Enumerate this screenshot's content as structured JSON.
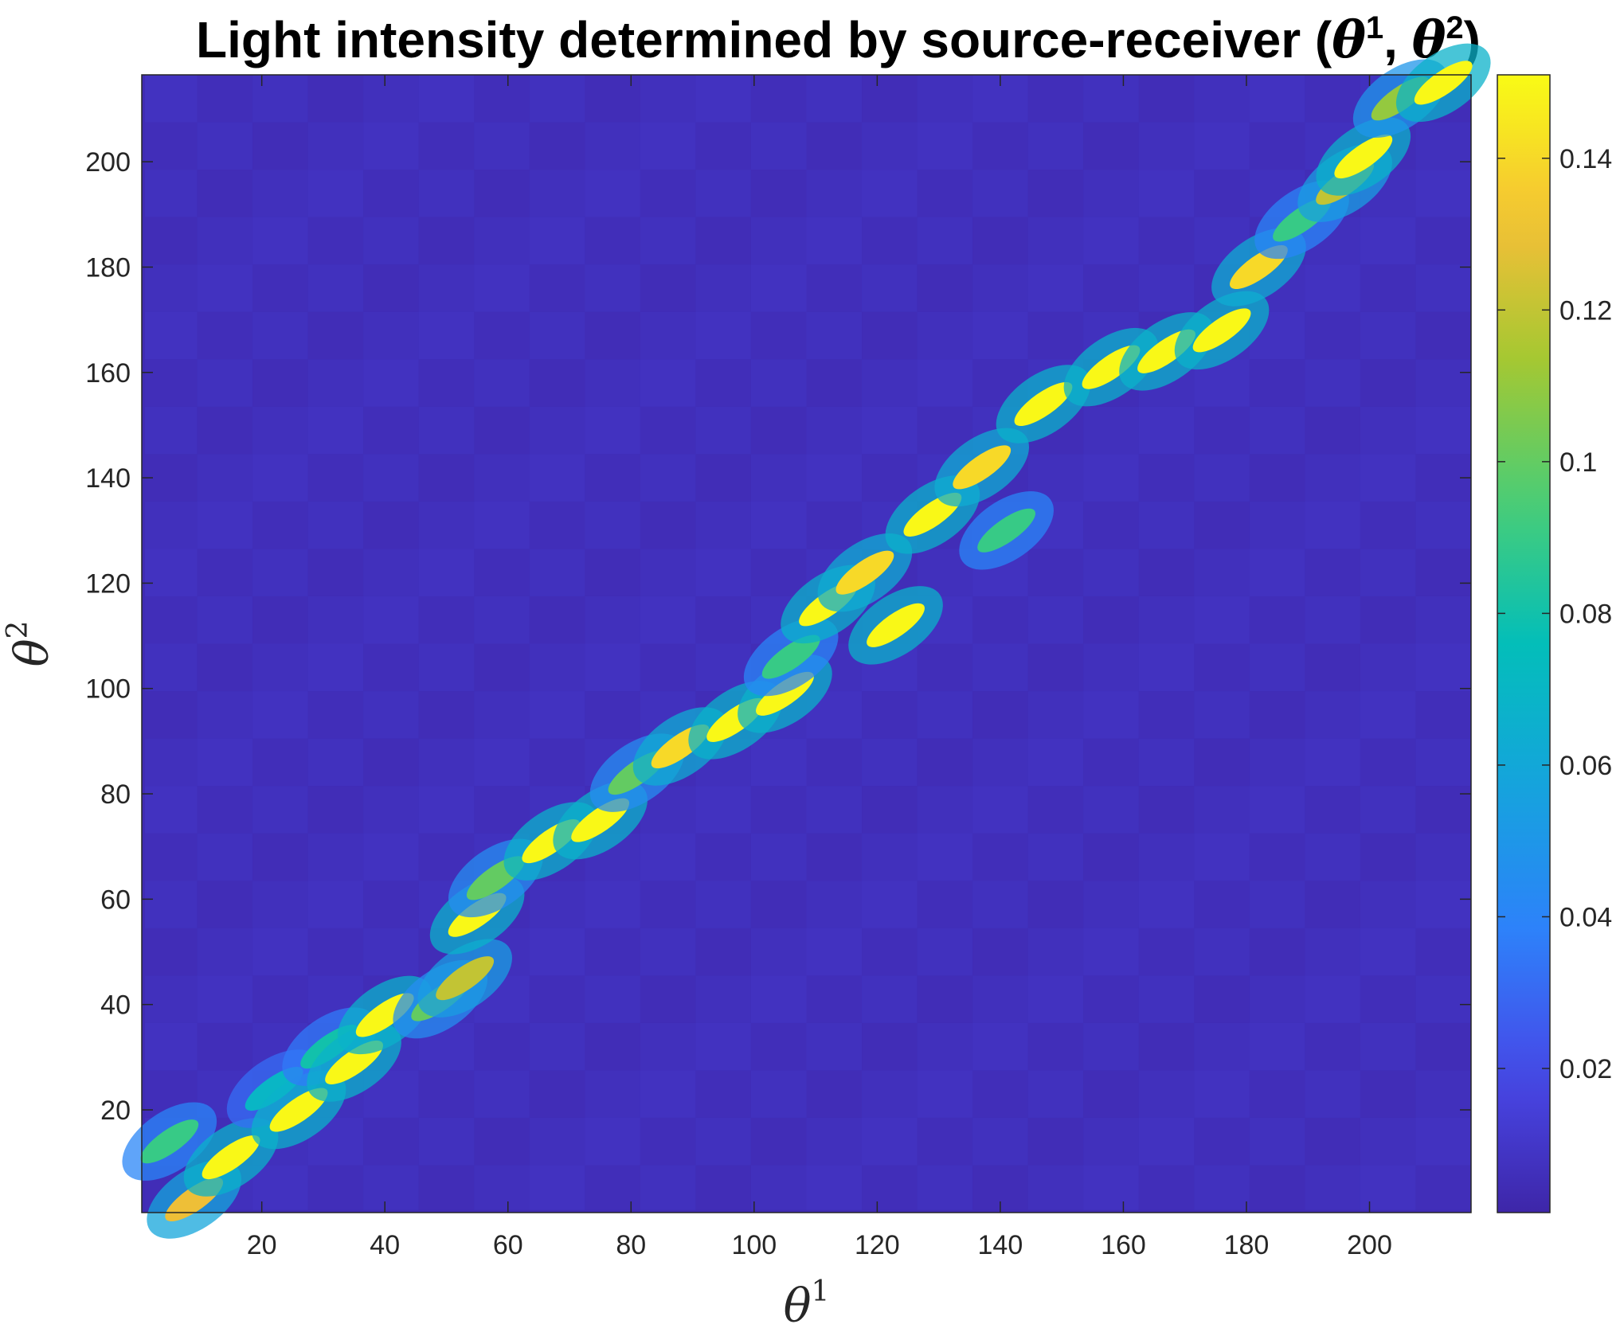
{
  "chart_data": {
    "type": "heatmap",
    "title": {
      "text": "Light intensity determined by source-receiver (",
      "sym1": "θ",
      "sup1": "1",
      "sep": ", ",
      "sym2": "θ",
      "sup2": "2",
      "close": ")"
    },
    "xlabel": {
      "sym": "θ",
      "sup": "1"
    },
    "ylabel": {
      "sym": "θ",
      "sup": "2"
    },
    "xlim": [
      1,
      216
    ],
    "ylim": [
      1,
      216
    ],
    "xticks": [
      20,
      40,
      60,
      80,
      100,
      120,
      140,
      160,
      180,
      200
    ],
    "yticks": [
      20,
      40,
      60,
      80,
      100,
      120,
      140,
      160,
      180,
      200
    ],
    "colorbar": {
      "range": [
        0.001,
        0.151
      ],
      "ticks": [
        0.02,
        0.04,
        0.06,
        0.08,
        0.1,
        0.12,
        0.14
      ],
      "tick_labels": [
        "0.02",
        "0.04",
        "0.06",
        "0.08",
        "0.1",
        "0.12",
        "0.14"
      ],
      "colormap": "parula"
    },
    "grid": false,
    "background_value": 0.004,
    "diagonal_hotspots": [
      {
        "x": 5,
        "y": 14,
        "value": 0.09
      },
      {
        "x": 9,
        "y": 3,
        "value": 0.13
      },
      {
        "x": 15,
        "y": 11,
        "value": 0.15
      },
      {
        "x": 22,
        "y": 24,
        "value": 0.07
      },
      {
        "x": 26,
        "y": 20,
        "value": 0.15
      },
      {
        "x": 31,
        "y": 32,
        "value": 0.08
      },
      {
        "x": 35,
        "y": 29,
        "value": 0.15
      },
      {
        "x": 40,
        "y": 38,
        "value": 0.15
      },
      {
        "x": 49,
        "y": 41,
        "value": 0.1
      },
      {
        "x": 53,
        "y": 45,
        "value": 0.12
      },
      {
        "x": 55,
        "y": 57,
        "value": 0.15
      },
      {
        "x": 58,
        "y": 64,
        "value": 0.1
      },
      {
        "x": 67,
        "y": 71,
        "value": 0.15
      },
      {
        "x": 75,
        "y": 75,
        "value": 0.15
      },
      {
        "x": 81,
        "y": 84,
        "value": 0.1
      },
      {
        "x": 88,
        "y": 89,
        "value": 0.14
      },
      {
        "x": 97,
        "y": 94,
        "value": 0.15
      },
      {
        "x": 105,
        "y": 99,
        "value": 0.15
      },
      {
        "x": 106,
        "y": 106,
        "value": 0.09
      },
      {
        "x": 112,
        "y": 116,
        "value": 0.15
      },
      {
        "x": 118,
        "y": 122,
        "value": 0.14
      },
      {
        "x": 123,
        "y": 112,
        "value": 0.15
      },
      {
        "x": 129,
        "y": 133,
        "value": 0.15
      },
      {
        "x": 137,
        "y": 142,
        "value": 0.14
      },
      {
        "x": 141,
        "y": 130,
        "value": 0.09
      },
      {
        "x": 147,
        "y": 154,
        "value": 0.15
      },
      {
        "x": 158,
        "y": 161,
        "value": 0.15
      },
      {
        "x": 167,
        "y": 164,
        "value": 0.15
      },
      {
        "x": 176,
        "y": 168,
        "value": 0.15
      },
      {
        "x": 182,
        "y": 180,
        "value": 0.14
      },
      {
        "x": 189,
        "y": 189,
        "value": 0.09
      },
      {
        "x": 196,
        "y": 196,
        "value": 0.12
      },
      {
        "x": 199,
        "y": 201,
        "value": 0.15
      },
      {
        "x": 205,
        "y": 212,
        "value": 0.11
      },
      {
        "x": 212,
        "y": 215,
        "value": 0.15
      }
    ]
  }
}
